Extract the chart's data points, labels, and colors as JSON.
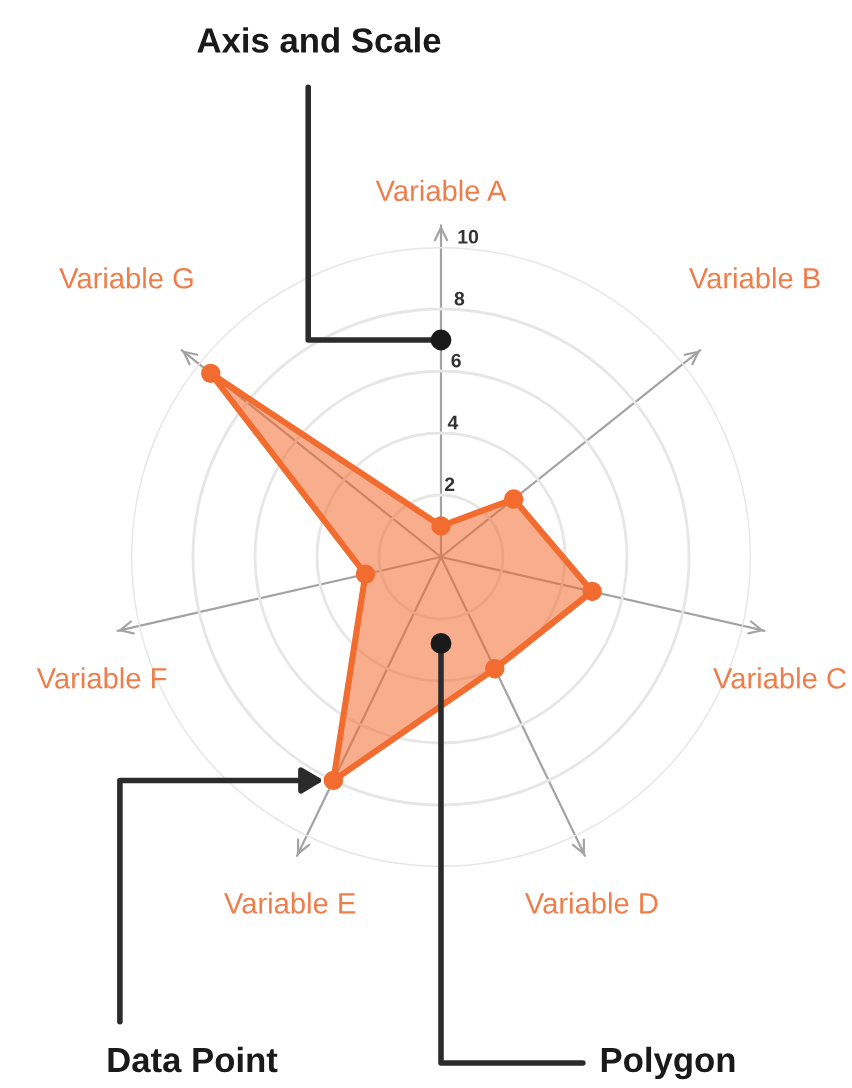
{
  "chart_data": {
    "type": "radar",
    "categories": [
      "Variable A",
      "Variable B",
      "Variable C",
      "Variable D",
      "Variable E",
      "Variable F",
      "Variable G"
    ],
    "series": [
      {
        "color": "#f26b2f",
        "values": [
          1,
          3,
          5,
          4,
          8,
          2.5,
          9.5
        ]
      }
    ],
    "ylim": [
      0,
      10
    ],
    "yticks": [
      2,
      4,
      6,
      8,
      10
    ],
    "grid": true,
    "marker": "circle",
    "annotations": [
      "Axis and Scale",
      "Data Point",
      "Polygon"
    ]
  }
}
